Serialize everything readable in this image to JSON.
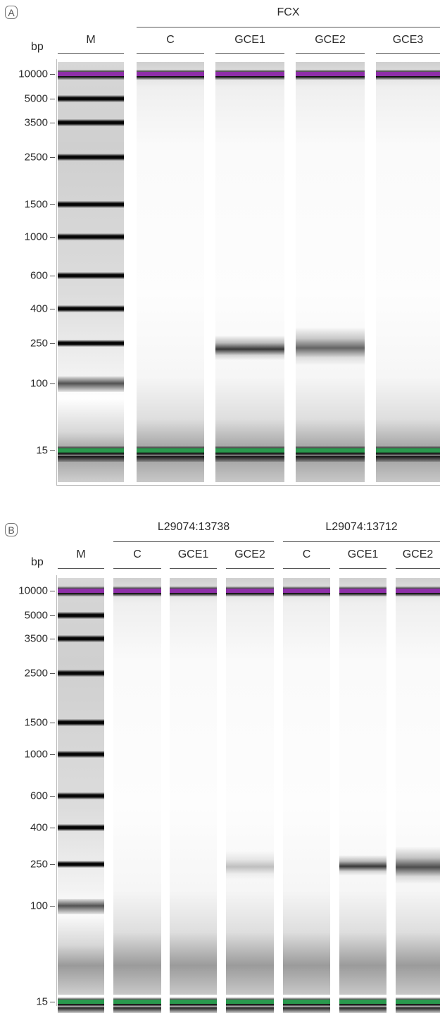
{
  "panels": [
    {
      "id": "A",
      "letter": "A",
      "unit_label": "bp",
      "groups": [
        {
          "label": "FCX",
          "lanes": [
            1,
            2,
            3,
            4
          ]
        }
      ],
      "lanes": [
        {
          "label": "M",
          "type": "ladder"
        },
        {
          "label": "C",
          "type": "sample",
          "smears": []
        },
        {
          "label": "GCE1",
          "type": "sample",
          "smears": [
            {
              "bp": 225,
              "strength": 0.85,
              "width": 0.06
            }
          ]
        },
        {
          "label": "GCE2",
          "type": "sample",
          "smears": [
            {
              "bp": 235,
              "strength": 0.65,
              "width": 0.09
            }
          ]
        },
        {
          "label": "GCE3",
          "type": "sample",
          "smears": []
        }
      ],
      "ticks": [
        "10000",
        "5000",
        "3500",
        "2500",
        "1500",
        "1000",
        "600",
        "400",
        "250",
        "100",
        "15"
      ],
      "colors": {
        "upper_marker": "#8e2fa8",
        "lower_marker": "#2a9a4e"
      }
    },
    {
      "id": "B",
      "letter": "B",
      "unit_label": "bp",
      "groups": [
        {
          "label": "L29074:13738",
          "lanes": [
            1,
            2,
            3
          ]
        },
        {
          "label": "L29074:13712",
          "lanes": [
            4,
            5,
            6
          ]
        }
      ],
      "lanes": [
        {
          "label": "M",
          "type": "ladder"
        },
        {
          "label": "C",
          "type": "sample",
          "smears": []
        },
        {
          "label": "GCE1",
          "type": "sample",
          "smears": []
        },
        {
          "label": "GCE2",
          "type": "sample",
          "smears": [
            {
              "bp": 245,
              "strength": 0.25,
              "width": 0.07
            }
          ]
        },
        {
          "label": "C",
          "type": "sample",
          "smears": []
        },
        {
          "label": "GCE1",
          "type": "sample",
          "smears": [
            {
              "bp": 245,
              "strength": 0.85,
              "width": 0.05
            }
          ]
        },
        {
          "label": "GCE2",
          "type": "sample",
          "smears": [
            {
              "bp": 245,
              "strength": 0.75,
              "width": 0.09
            }
          ]
        }
      ],
      "ticks": [
        "10000",
        "5000",
        "3500",
        "2500",
        "1500",
        "1000",
        "600",
        "400",
        "250",
        "100",
        "15"
      ],
      "colors": {
        "upper_marker": "#8e2fa8",
        "lower_marker": "#2a9a4e"
      }
    }
  ]
}
